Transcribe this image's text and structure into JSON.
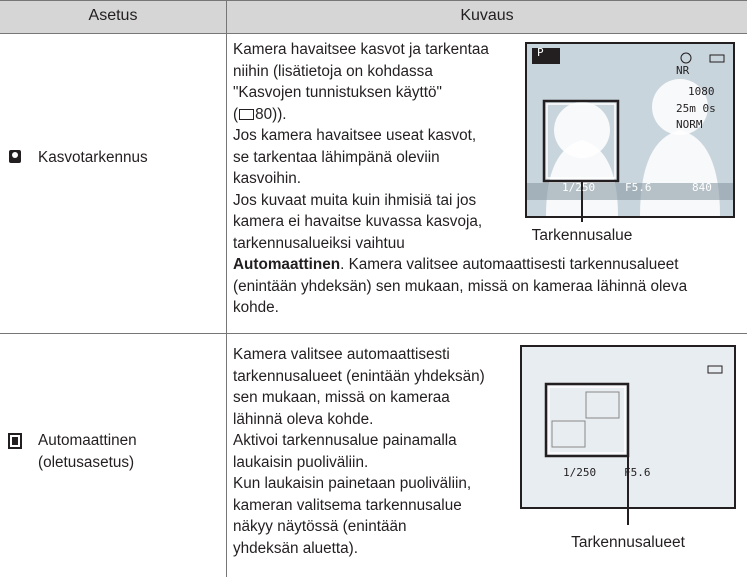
{
  "table": {
    "header": [
      "Asetus",
      "Kuvaus"
    ],
    "rows": [
      {
        "setting": [
          "Kasvotarkennus"
        ],
        "description": [
          "Kamera havaitsee kasvot ja tarkentaa",
          "niihin (lisätietoja on kohdassa",
          "\"Kasvojen tunnistuksen käyttö\"",
          {
            "text": [
              "(",
              "80))."
            ]
          },
          "Jos kamera havaitsee useat kasvot,",
          "se tarkentaa lähimpänä oleviin",
          "kasvoihin.",
          "Jos kuvaat muita kuin ihmisiä tai jos",
          "kamera ei havaitse kuvassa kasvoja,",
          "tarkennusalueiksi vaihtuu",
          {
            "bold": "Automaattinen",
            "text": ". Kamera valitsee automaattisesti tarkennusalueet"
          },
          "(enintään yhdeksän) sen mukaan, missä on kameraa lähinnä oleva",
          "kohde."
        ],
        "figure": {
          "caption": "Tarkennusalue",
          "screen": [
            "P",
            "NR",
            "1080",
            "25m 0s",
            "NORM",
            "1/250",
            "F5.6",
            "840"
          ]
        }
      },
      {
        "setting": [
          "Automaattinen",
          "(oletusasetus)"
        ],
        "description": [
          "Kamera valitsee automaattisesti",
          "tarkennusalueet (enintään yhdeksän)",
          "sen mukaan, missä on kameraa",
          "lähinnä oleva kohde.",
          "Aktivoi tarkennusalue painamalla",
          "laukaisin puoliväliin.",
          "Kun laukaisin painetaan puoliväliin,",
          "kameran valitsema tarkennusalue",
          "näkyy näytössä (enintään",
          "yhdeksän aluetta)."
        ],
        "figure": {
          "caption": "Tarkennusalueet",
          "screen": [
            "1/250",
            "F5.6"
          ]
        }
      }
    ]
  }
}
